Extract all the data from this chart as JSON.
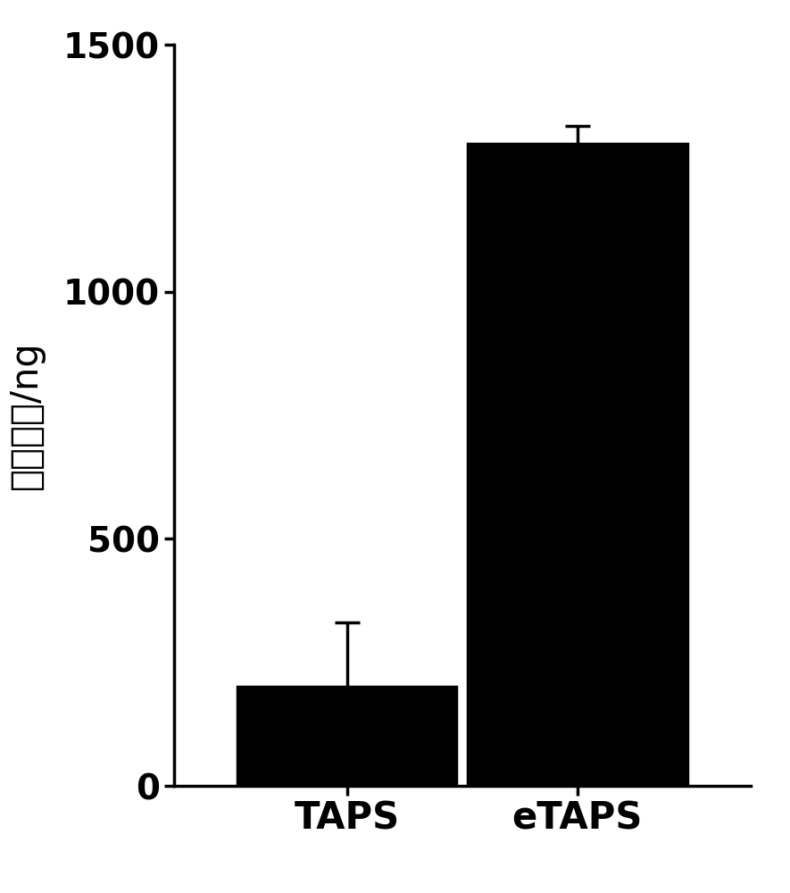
{
  "categories": [
    "TAPS",
    "eTAPS"
  ],
  "values": [
    200,
    1300
  ],
  "errors": [
    130,
    35
  ],
  "bar_color": "#000000",
  "ylabel": "文库产量/ng",
  "ylim": [
    0,
    1500
  ],
  "yticks": [
    0,
    500,
    1000,
    1500
  ],
  "bar_width": 0.38,
  "background_color": "#ffffff",
  "ylabel_fontsize": 30,
  "tick_fontsize": 28,
  "xlabel_fontsize": 30,
  "linewidth": 2.5,
  "capsize": 10
}
